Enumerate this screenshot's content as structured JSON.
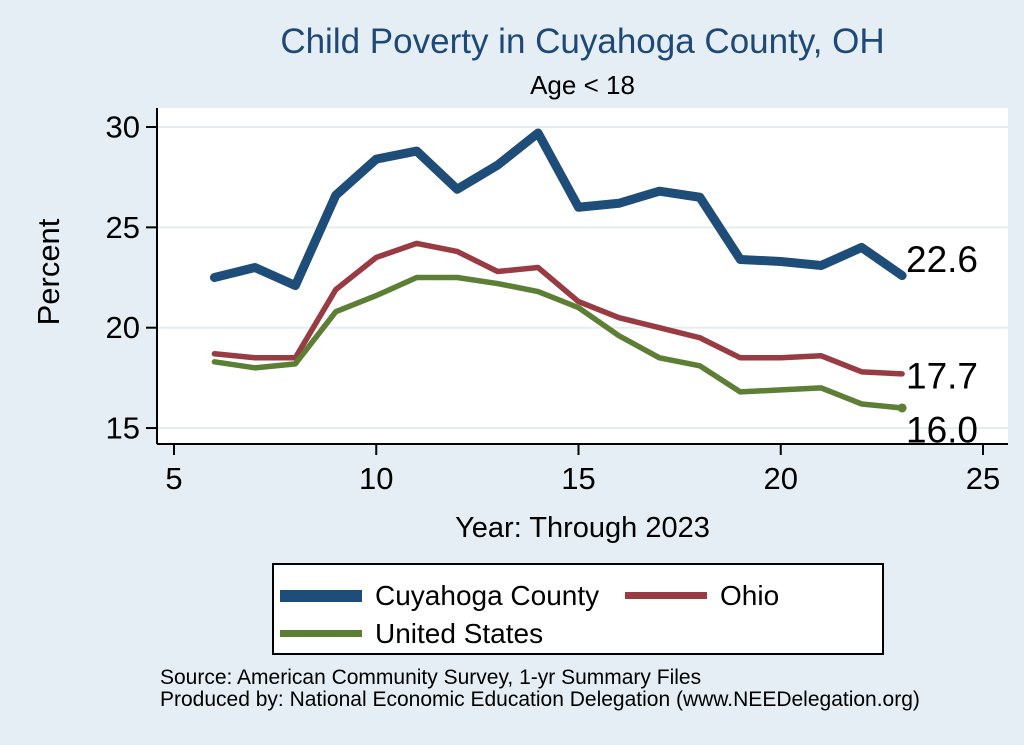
{
  "page": {
    "title": "Child Poverty in Cuyahoga County, OH",
    "subtitle": "Age < 18",
    "footer_lines": [
      "Source: American Community Survey, 1-yr Summary Files",
      "Produced by: National Economic Education Delegation (www.NEEDelegation.org)"
    ]
  },
  "chart_data": {
    "type": "line",
    "title": "Child Poverty in Cuyahoga County, OH",
    "subtitle": "Age < 18",
    "xlabel": "Year: Through 2023",
    "ylabel": "Percent",
    "grid": "horizontal",
    "legend_position": "below",
    "xlim": [
      5,
      25
    ],
    "ylim": [
      14,
      31
    ],
    "x_ticks": [
      5,
      10,
      15,
      20,
      25
    ],
    "y_ticks": [
      15,
      20,
      25,
      30
    ],
    "background_color": "#e4eef4",
    "plot_background": "#ffffff",
    "gridline_color": "#e3edf0",
    "x": [
      6,
      7,
      8,
      9,
      10,
      11,
      12,
      13,
      14,
      15,
      16,
      17,
      18,
      19,
      20,
      21,
      22,
      23
    ],
    "series": [
      {
        "name": "Cuyahoga County",
        "color": "#1d4d78",
        "line_width": 9,
        "end_label": "22.6",
        "end_marker": false,
        "values": [
          22.5,
          23.0,
          22.1,
          26.6,
          28.4,
          28.8,
          26.9,
          28.1,
          29.7,
          26.0,
          26.2,
          26.8,
          26.5,
          23.4,
          23.3,
          23.1,
          24.0,
          22.6
        ]
      },
      {
        "name": "Ohio",
        "color": "#993b42",
        "line_width": 5.5,
        "end_label": "17.7",
        "end_marker": false,
        "values": [
          18.7,
          18.5,
          18.5,
          21.9,
          23.5,
          24.2,
          23.8,
          22.8,
          23.0,
          21.3,
          20.5,
          20.0,
          19.5,
          18.5,
          18.5,
          18.6,
          17.8,
          17.7
        ]
      },
      {
        "name": "United States",
        "color": "#5c7f35",
        "line_width": 5.5,
        "end_label": "16.0",
        "end_marker": true,
        "values": [
          18.3,
          18.0,
          18.2,
          20.8,
          21.6,
          22.5,
          22.5,
          22.2,
          21.8,
          21.0,
          19.6,
          18.5,
          18.1,
          16.8,
          16.9,
          17.0,
          16.2,
          16.0
        ]
      }
    ]
  }
}
